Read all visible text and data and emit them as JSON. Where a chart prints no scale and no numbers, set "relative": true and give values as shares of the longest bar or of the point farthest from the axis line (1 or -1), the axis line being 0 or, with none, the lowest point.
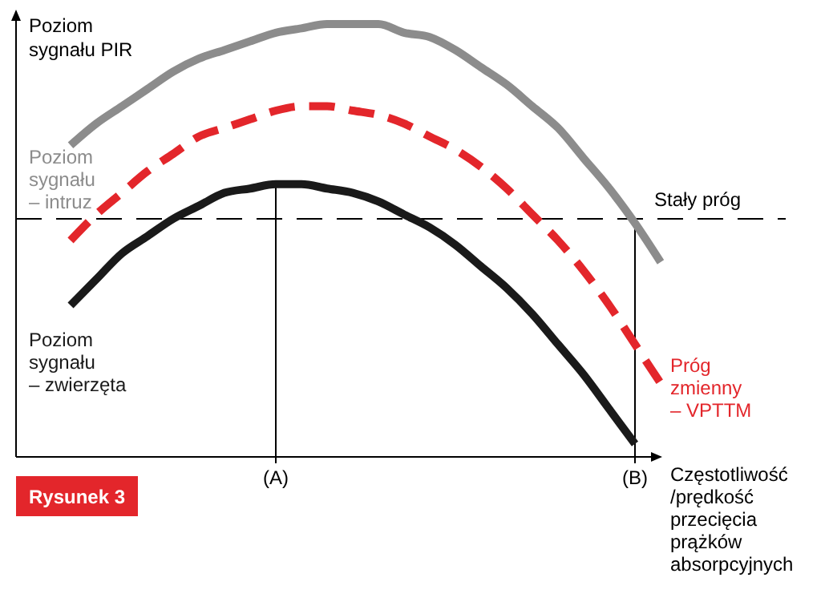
{
  "chart_data": {
    "type": "line",
    "relative": true,
    "ylabel": "Poziom\nsygnału PIR",
    "xlabel": "Częstotliwość\n/prędkość\nprzecięcia\nprążków\nabsorpcyjnych",
    "categories": [
      null,
      null,
      null,
      null,
      null,
      null,
      null,
      null,
      "(A)",
      null,
      null,
      null,
      null,
      null,
      null,
      null,
      null,
      null,
      null,
      null,
      null,
      null,
      "(B)",
      null
    ],
    "series": [
      {
        "name": "Poziom\nsygnału\n– intruz",
        "color": "#8c8c8c",
        "values": [
          0.72,
          0.77,
          0.81,
          0.85,
          0.89,
          0.92,
          0.94,
          0.96,
          0.98,
          0.99,
          1.0,
          1.0,
          1.0,
          0.98,
          0.97,
          0.94,
          0.9,
          0.86,
          0.81,
          0.76,
          0.69,
          0.62,
          0.54,
          0.45
        ]
      },
      {
        "name": "Próg\nzmienny\n– VPTTM",
        "color": "#e3262b",
        "line_style": "dashed",
        "values": [
          0.5,
          0.56,
          0.61,
          0.66,
          0.7,
          0.74,
          0.76,
          0.78,
          0.8,
          0.81,
          0.81,
          0.8,
          0.79,
          0.77,
          0.74,
          0.71,
          0.67,
          0.62,
          0.56,
          0.5,
          0.43,
          0.35,
          0.26,
          0.17
        ]
      },
      {
        "name": "Poziom\nsygnału\n– zwierzęta",
        "color": "#1a1a1a",
        "values": [
          0.35,
          0.41,
          0.47,
          0.51,
          0.55,
          0.58,
          0.61,
          0.62,
          0.63,
          0.63,
          0.62,
          0.61,
          0.59,
          0.56,
          0.53,
          0.49,
          0.44,
          0.39,
          0.33,
          0.26,
          0.19,
          0.11,
          0.03,
          null
        ]
      }
    ],
    "ref_lines": [
      {
        "axis": "y",
        "value": 0.55,
        "label": "Stały próg",
        "line_style": "dashed",
        "color": "#000000"
      },
      {
        "axis": "x",
        "value": "(A)",
        "color": "#000000"
      },
      {
        "axis": "x",
        "value": "(B)",
        "color": "#000000"
      }
    ],
    "annotations": [
      "Rysunek 3"
    ]
  }
}
